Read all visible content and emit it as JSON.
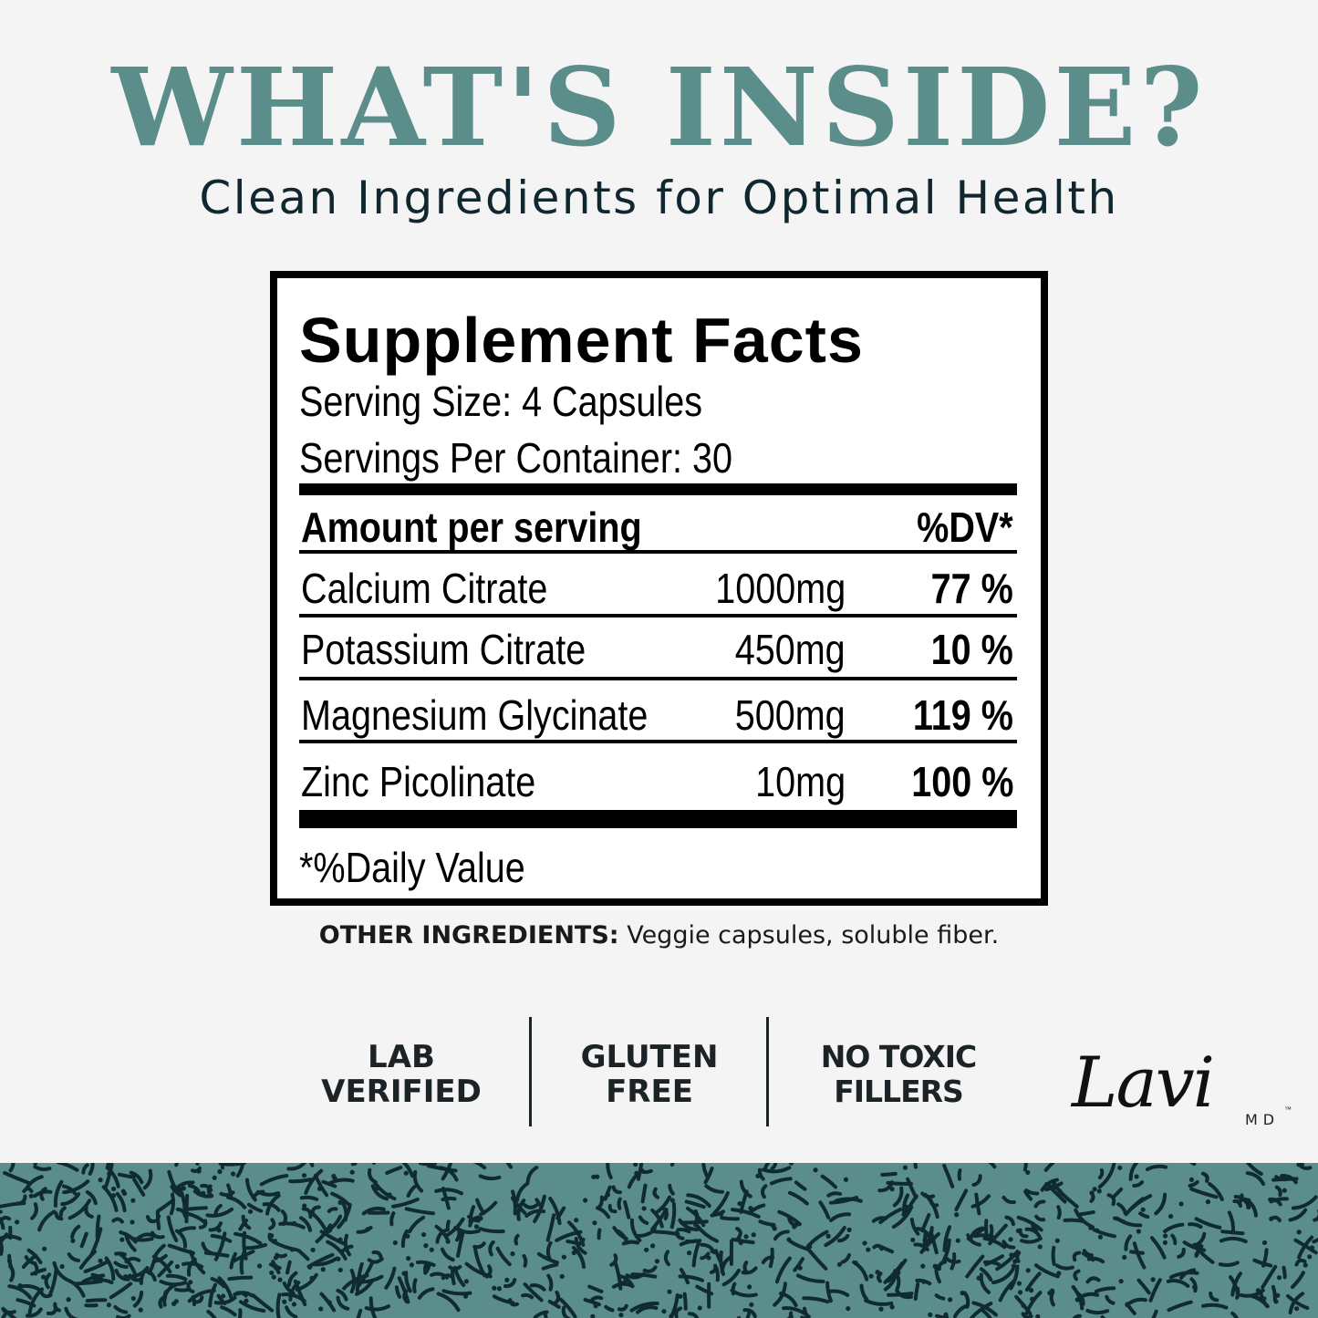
{
  "header": {
    "title": "WHAT'S INSIDE?",
    "subtitle": "Clean Ingredients for Optimal Health"
  },
  "supplement_facts": {
    "title": "Supplement Facts",
    "serving_size": "Serving Size: 4 Capsules",
    "servings_per_container": "Servings Per Container: 30",
    "amount_header": "Amount per serving",
    "dv_header": "%DV*",
    "rows": [
      {
        "name": "Calcium Citrate",
        "amount": "1000mg",
        "dv": "77 %"
      },
      {
        "name": "Potassium Citrate",
        "amount": "450mg",
        "dv": "10 %"
      },
      {
        "name": "Magnesium Glycinate",
        "amount": "500mg",
        "dv": "119 %"
      },
      {
        "name": "Zinc Picolinate",
        "amount": "10mg",
        "dv": "100 %"
      }
    ],
    "footnote": "*%Daily Value"
  },
  "other_ingredients": {
    "label": "OTHER INGREDIENTS:",
    "value": " Veggie capsules, soluble fiber."
  },
  "badges": [
    {
      "line1": "LAB",
      "line2": "VERIFIED"
    },
    {
      "line1": "GLUTEN",
      "line2": "FREE"
    },
    {
      "line1": "NO TOXIC",
      "line2": "FILLERS"
    }
  ],
  "logo": {
    "script": "Lavi",
    "suffix": "MD",
    "tm": "™"
  },
  "colors": {
    "accent": "#5b8d8a",
    "text_dark": "#102730",
    "background": "#f4f4f4",
    "pattern_ink": "#0f2a33"
  }
}
